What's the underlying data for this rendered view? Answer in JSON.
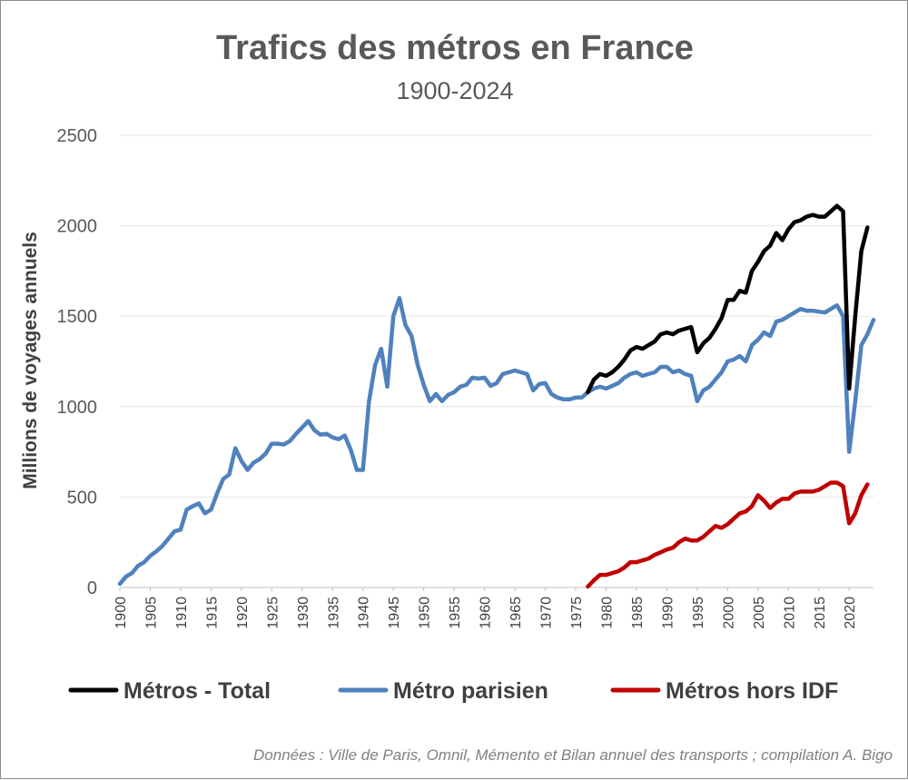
{
  "chart_data": {
    "type": "line",
    "title": "Trafics des métros en France",
    "subtitle": "1900-2024",
    "ylabel": "Millions de voyages annuels",
    "xlabel": "",
    "xlim": [
      1900,
      2024
    ],
    "ylim": [
      0,
      2500
    ],
    "yticks": [
      0,
      500,
      1000,
      1500,
      2000,
      2500
    ],
    "xticks": [
      1900,
      1905,
      1910,
      1915,
      1920,
      1925,
      1930,
      1935,
      1940,
      1945,
      1950,
      1955,
      1960,
      1965,
      1970,
      1975,
      1980,
      1985,
      1990,
      1995,
      2000,
      2005,
      2010,
      2015,
      2020
    ],
    "grid": "horizontal",
    "legend_position": "bottom",
    "source": "Données : Ville de Paris, Omnil, Mémento et Bilan annuel des transports ; compilation A. Bigo",
    "series": [
      {
        "name": "Métros - Total",
        "color": "#000000",
        "x": [
          1977,
          1978,
          1979,
          1980,
          1981,
          1982,
          1983,
          1984,
          1985,
          1986,
          1987,
          1988,
          1989,
          1990,
          1991,
          1992,
          1993,
          1994,
          1995,
          1996,
          1997,
          1998,
          1999,
          2000,
          2001,
          2002,
          2003,
          2004,
          2005,
          2006,
          2007,
          2008,
          2009,
          2010,
          2011,
          2012,
          2013,
          2014,
          2015,
          2016,
          2017,
          2018,
          2019,
          2020,
          2021,
          2022,
          2023
        ],
        "values": [
          1080,
          1150,
          1180,
          1170,
          1190,
          1220,
          1260,
          1310,
          1330,
          1320,
          1340,
          1360,
          1400,
          1410,
          1400,
          1420,
          1430,
          1440,
          1300,
          1350,
          1380,
          1430,
          1490,
          1590,
          1590,
          1640,
          1630,
          1750,
          1800,
          1860,
          1890,
          1960,
          1920,
          1980,
          2020,
          2030,
          2050,
          2060,
          2050,
          2050,
          2080,
          2110,
          2080,
          1100,
          1500,
          1860,
          1990
        ]
      },
      {
        "name": "Métro parisien",
        "color": "#4f81bd",
        "x": [
          1900,
          1901,
          1902,
          1903,
          1904,
          1905,
          1906,
          1907,
          1908,
          1909,
          1910,
          1911,
          1912,
          1913,
          1914,
          1915,
          1916,
          1917,
          1918,
          1919,
          1920,
          1921,
          1922,
          1923,
          1924,
          1925,
          1926,
          1927,
          1928,
          1929,
          1930,
          1931,
          1932,
          1933,
          1934,
          1935,
          1936,
          1937,
          1938,
          1939,
          1940,
          1941,
          1942,
          1943,
          1944,
          1945,
          1946,
          1947,
          1948,
          1949,
          1950,
          1951,
          1952,
          1953,
          1954,
          1955,
          1956,
          1957,
          1958,
          1959,
          1960,
          1961,
          1962,
          1963,
          1964,
          1965,
          1966,
          1967,
          1968,
          1969,
          1970,
          1971,
          1972,
          1973,
          1974,
          1975,
          1976,
          1977,
          1978,
          1979,
          1980,
          1981,
          1982,
          1983,
          1984,
          1985,
          1986,
          1987,
          1988,
          1989,
          1990,
          1991,
          1992,
          1993,
          1994,
          1995,
          1996,
          1997,
          1998,
          1999,
          2000,
          2001,
          2002,
          2003,
          2004,
          2005,
          2006,
          2007,
          2008,
          2009,
          2010,
          2011,
          2012,
          2013,
          2014,
          2015,
          2016,
          2017,
          2018,
          2019,
          2020,
          2021,
          2022,
          2023,
          2024
        ],
        "values": [
          20,
          60,
          80,
          120,
          140,
          175,
          200,
          230,
          270,
          310,
          320,
          430,
          450,
          465,
          410,
          430,
          520,
          600,
          625,
          770,
          700,
          650,
          690,
          710,
          740,
          795,
          795,
          790,
          810,
          850,
          885,
          920,
          870,
          845,
          850,
          830,
          820,
          840,
          760,
          650,
          650,
          1030,
          1230,
          1320,
          1110,
          1500,
          1600,
          1450,
          1390,
          1230,
          1120,
          1030,
          1070,
          1030,
          1065,
          1080,
          1110,
          1120,
          1160,
          1155,
          1160,
          1115,
          1130,
          1180,
          1190,
          1200,
          1190,
          1180,
          1090,
          1125,
          1130,
          1070,
          1050,
          1040,
          1040,
          1050,
          1050,
          1080,
          1100,
          1110,
          1100,
          1115,
          1130,
          1160,
          1180,
          1190,
          1170,
          1180,
          1190,
          1220,
          1220,
          1190,
          1200,
          1180,
          1170,
          1030,
          1090,
          1110,
          1150,
          1190,
          1250,
          1260,
          1280,
          1250,
          1340,
          1370,
          1410,
          1390,
          1470,
          1480,
          1500,
          1520,
          1540,
          1530,
          1530,
          1525,
          1520,
          1540,
          1560,
          1500,
          750,
          1030,
          1340,
          1400,
          1480
        ]
      },
      {
        "name": "Métros hors IDF",
        "color": "#c00000",
        "x": [
          1977,
          1978,
          1979,
          1980,
          1981,
          1982,
          1983,
          1984,
          1985,
          1986,
          1987,
          1988,
          1989,
          1990,
          1991,
          1992,
          1993,
          1994,
          1995,
          1996,
          1997,
          1998,
          1999,
          2000,
          2001,
          2002,
          2003,
          2004,
          2005,
          2006,
          2007,
          2008,
          2009,
          2010,
          2011,
          2012,
          2013,
          2014,
          2015,
          2016,
          2017,
          2018,
          2019,
          2020,
          2021,
          2022,
          2023
        ],
        "values": [
          5,
          40,
          70,
          70,
          80,
          90,
          110,
          140,
          140,
          150,
          160,
          180,
          195,
          210,
          220,
          250,
          270,
          260,
          260,
          280,
          310,
          340,
          330,
          350,
          380,
          410,
          420,
          450,
          510,
          480,
          440,
          470,
          490,
          490,
          520,
          530,
          530,
          530,
          540,
          560,
          580,
          580,
          560,
          355,
          410,
          510,
          570
        ]
      }
    ]
  }
}
